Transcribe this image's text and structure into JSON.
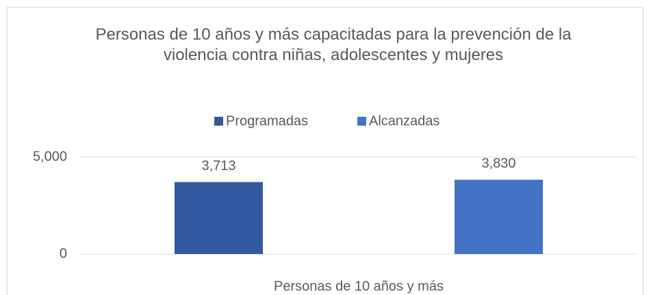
{
  "chart_data": {
    "type": "bar",
    "title": "Personas de 10 años y más capacitadas para la prevención de la violencia contra niñas, adolescentes y mujeres",
    "categories": [
      "Personas de 10 años y más"
    ],
    "series": [
      {
        "name": "Programadas",
        "color": "#335aa1",
        "values": [
          3713
        ],
        "value_labels": [
          "3,713"
        ]
      },
      {
        "name": "Alcanzadas",
        "color": "#4472c4",
        "values": [
          3830
        ],
        "value_labels": [
          "3,830"
        ]
      }
    ],
    "ylim": [
      0,
      5000
    ],
    "yticks": [
      0,
      {
        "value": 5000,
        "label": "5,000"
      }
    ],
    "grid": true,
    "legend": "top"
  }
}
